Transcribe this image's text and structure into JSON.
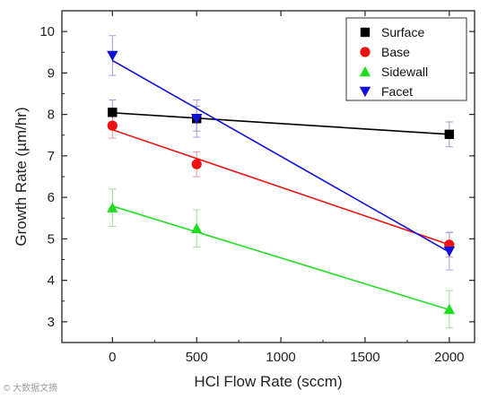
{
  "chart_data": {
    "type": "scatter",
    "xlabel": "HCl Flow Rate (sccm)",
    "ylabel": "Growth Rate (µm/hr)",
    "xlim": [
      -300,
      2150
    ],
    "ylim": [
      2.5,
      10.5
    ],
    "xticks": [
      0,
      500,
      1000,
      1500,
      2000
    ],
    "yticks": [
      3,
      4,
      5,
      6,
      7,
      8,
      9,
      10
    ],
    "grid": false,
    "legend_position": "top-right",
    "series": [
      {
        "name": "Surface",
        "marker": "square",
        "color": "#000000",
        "fit_color": "#000000",
        "err_color": "#9a9ac8",
        "x": [
          0,
          500,
          2000
        ],
        "y": [
          8.05,
          7.9,
          7.52
        ],
        "err": [
          0.3,
          0.3,
          0.3
        ],
        "fit": [
          8.04,
          7.52
        ]
      },
      {
        "name": "Base",
        "marker": "circle",
        "color": "#ee1111",
        "fit_color": "#ee1111",
        "err_color": "#e89a9a",
        "x": [
          0,
          500,
          2000
        ],
        "y": [
          7.73,
          6.8,
          4.86
        ],
        "err": [
          0.3,
          0.3,
          0.3
        ],
        "fit": [
          7.63,
          4.86
        ]
      },
      {
        "name": "Sidewall",
        "marker": "triangle-up",
        "color": "#22dd22",
        "fit_color": "#22dd22",
        "err_color": "#99dd99",
        "x": [
          0,
          500,
          2000
        ],
        "y": [
          5.75,
          5.25,
          3.3
        ],
        "err": [
          0.45,
          0.45,
          0.45
        ],
        "fit": [
          5.79,
          3.29
        ]
      },
      {
        "name": "Facet",
        "marker": "triangle-down",
        "color": "#1111dd",
        "fit_color": "#1111dd",
        "err_color": "#a0a0e8",
        "x": [
          0,
          500,
          2000
        ],
        "y": [
          9.42,
          7.9,
          4.7
        ],
        "err": [
          0.48,
          0.45,
          0.45
        ],
        "fit": [
          9.3,
          4.68
        ]
      }
    ]
  },
  "watermark": "© 大数据文摘"
}
